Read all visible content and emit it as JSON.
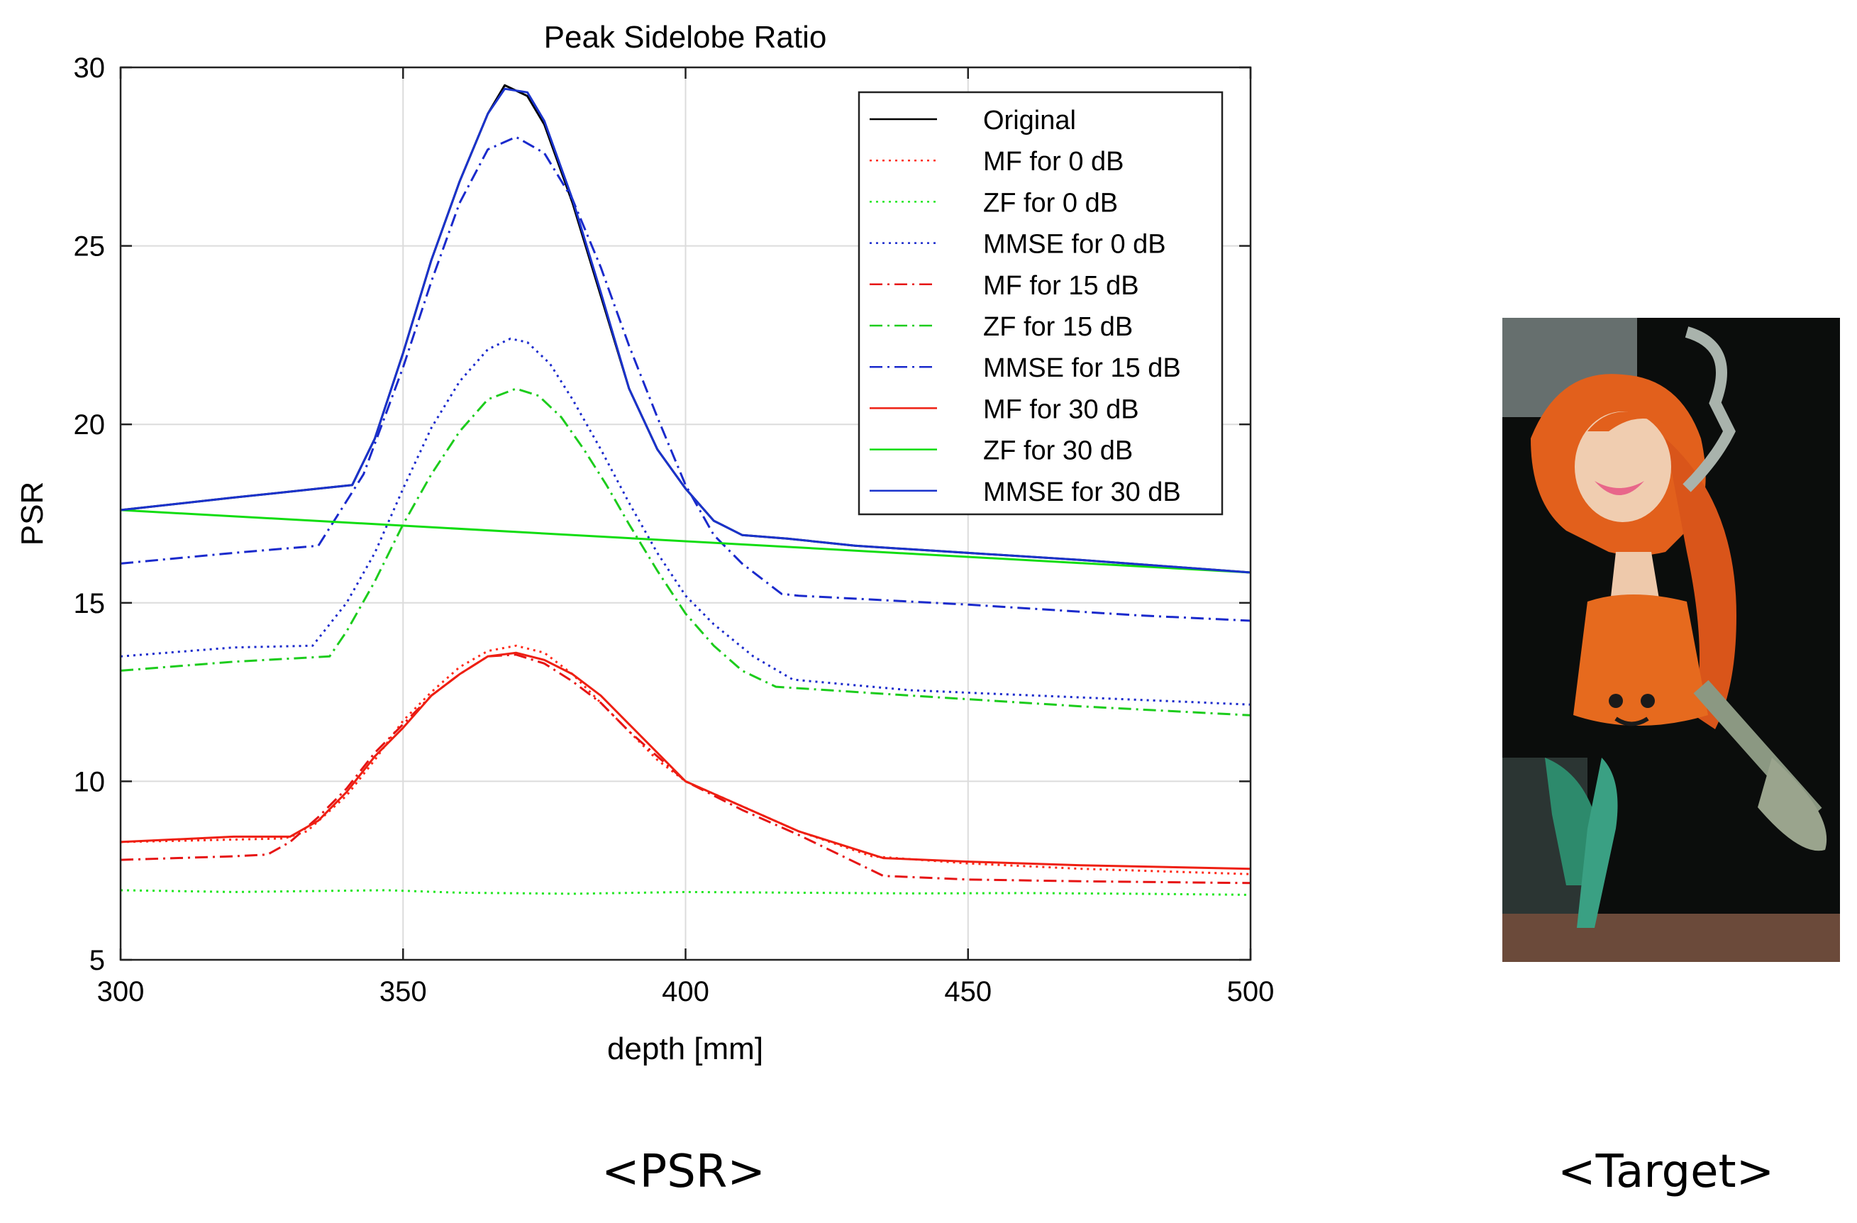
{
  "chart_data": {
    "type": "line",
    "title": "Peak Sidelobe Ratio",
    "xlabel": "depth [mm]",
    "ylabel": "PSR",
    "xlim": [
      300,
      500
    ],
    "ylim": [
      5,
      30
    ],
    "xticks": [
      300,
      350,
      400,
      450,
      500
    ],
    "yticks": [
      5,
      10,
      15,
      20,
      25,
      30
    ],
    "grid": true,
    "legend_position": "top-right",
    "series": [
      {
        "name": "Original",
        "color": "#000000",
        "style": "solid",
        "x": [
          300,
          320,
          335,
          341,
          345,
          350,
          355,
          360,
          365,
          368,
          372,
          375,
          380,
          385,
          390,
          395,
          400,
          405,
          410,
          418,
          430,
          450,
          470,
          500
        ],
        "y": [
          17.6,
          17.95,
          18.2,
          18.3,
          19.6,
          22.0,
          24.6,
          26.8,
          28.7,
          29.5,
          29.2,
          28.4,
          26.2,
          23.6,
          21.0,
          19.3,
          18.2,
          17.3,
          16.9,
          16.8,
          16.6,
          16.4,
          16.2,
          15.85
        ]
      },
      {
        "name": "MF for 0 dB",
        "color": "#ff2a1a",
        "style": "dotted",
        "x": [
          300,
          315,
          329,
          333,
          340,
          345,
          350,
          355,
          360,
          365,
          370,
          375,
          380,
          385,
          390,
          395,
          400,
          410,
          420,
          433,
          450,
          470,
          500
        ],
        "y": [
          8.3,
          8.35,
          8.4,
          8.6,
          9.6,
          10.6,
          11.7,
          12.5,
          13.2,
          13.65,
          13.8,
          13.6,
          13.0,
          12.2,
          11.4,
          10.6,
          10.0,
          9.3,
          8.6,
          7.9,
          7.7,
          7.55,
          7.4
        ]
      },
      {
        "name": "ZF for 0 dB",
        "color": "#22e622",
        "style": "dotted",
        "x": [
          300,
          320,
          347,
          360,
          380,
          400,
          420,
          440,
          460,
          480,
          500
        ],
        "y": [
          6.95,
          6.9,
          6.95,
          6.88,
          6.85,
          6.9,
          6.88,
          6.86,
          6.87,
          6.85,
          6.82
        ]
      },
      {
        "name": "MMSE for 0 dB",
        "color": "#1a2acc",
        "style": "dotted",
        "x": [
          300,
          320,
          334,
          340,
          345,
          350,
          355,
          360,
          365,
          369,
          372,
          376,
          380,
          385,
          390,
          395,
          400,
          405,
          412,
          419,
          440,
          470,
          500
        ],
        "y": [
          13.5,
          13.75,
          13.8,
          15.0,
          16.4,
          18.2,
          19.9,
          21.2,
          22.1,
          22.4,
          22.3,
          21.7,
          20.7,
          19.3,
          17.8,
          16.4,
          15.2,
          14.4,
          13.5,
          12.85,
          12.55,
          12.35,
          12.15
        ]
      },
      {
        "name": "MF for 15 dB",
        "color": "#e61414",
        "style": "dashdot",
        "x": [
          300,
          320,
          326,
          330,
          335,
          340,
          345,
          350,
          355,
          360,
          365,
          370,
          375,
          380,
          385,
          390,
          400,
          410,
          420,
          435,
          450,
          470,
          500
        ],
        "y": [
          7.8,
          7.9,
          7.95,
          8.3,
          9.0,
          9.8,
          10.8,
          11.6,
          12.4,
          13.0,
          13.5,
          13.55,
          13.3,
          12.8,
          12.2,
          11.4,
          10.0,
          9.2,
          8.5,
          7.35,
          7.25,
          7.2,
          7.15
        ]
      },
      {
        "name": "ZF for 15 dB",
        "color": "#1ccc1c",
        "style": "dashdot",
        "x": [
          300,
          320,
          337,
          340,
          345,
          350,
          355,
          360,
          365,
          370,
          374,
          378,
          382,
          386,
          390,
          395,
          400,
          405,
          410,
          416,
          440,
          470,
          500
        ],
        "y": [
          13.1,
          13.35,
          13.5,
          14.2,
          15.6,
          17.2,
          18.6,
          19.8,
          20.7,
          21.0,
          20.8,
          20.2,
          19.3,
          18.3,
          17.2,
          15.9,
          14.7,
          13.8,
          13.1,
          12.65,
          12.4,
          12.1,
          11.85
        ]
      },
      {
        "name": "MMSE for 15 dB",
        "color": "#1a2acc",
        "style": "dashdot",
        "x": [
          300,
          320,
          335,
          339,
          343,
          350,
          355,
          360,
          365,
          370,
          375,
          380,
          385,
          390,
          395,
          400,
          405,
          410,
          417,
          420,
          450,
          480,
          500
        ],
        "y": [
          16.1,
          16.4,
          16.6,
          17.6,
          18.6,
          21.6,
          24.0,
          26.2,
          27.7,
          28.05,
          27.6,
          26.3,
          24.4,
          22.2,
          20.2,
          18.3,
          16.9,
          16.1,
          15.25,
          15.2,
          14.95,
          14.65,
          14.5
        ]
      },
      {
        "name": "MF for 30 dB",
        "color": "#ee1f12",
        "style": "solid",
        "x": [
          300,
          320,
          330,
          335,
          340,
          345,
          350,
          355,
          360,
          365,
          370,
          375,
          380,
          385,
          390,
          395,
          400,
          410,
          420,
          435,
          450,
          470,
          500
        ],
        "y": [
          8.3,
          8.45,
          8.45,
          8.9,
          9.7,
          10.7,
          11.5,
          12.4,
          13.0,
          13.5,
          13.6,
          13.4,
          13.0,
          12.4,
          11.6,
          10.8,
          10.0,
          9.3,
          8.6,
          7.85,
          7.75,
          7.65,
          7.55
        ]
      },
      {
        "name": "ZF for 30 dB",
        "color": "#11dd11",
        "style": "solid",
        "x": [
          300,
          500
        ],
        "y": [
          17.6,
          15.85
        ]
      },
      {
        "name": "MMSE for 30 dB",
        "color": "#1a33cc",
        "style": "solid",
        "x": [
          300,
          320,
          335,
          341,
          345,
          350,
          355,
          360,
          365,
          368,
          372,
          375,
          380,
          385,
          390,
          395,
          400,
          405,
          410,
          418,
          430,
          450,
          470,
          500
        ],
        "y": [
          17.6,
          17.95,
          18.2,
          18.3,
          19.6,
          22.0,
          24.6,
          26.8,
          28.7,
          29.4,
          29.3,
          28.5,
          26.3,
          23.7,
          21.0,
          19.3,
          18.2,
          17.3,
          16.9,
          16.8,
          16.6,
          16.4,
          16.2,
          15.85
        ]
      }
    ]
  },
  "captions": {
    "left": "<PSR>",
    "right": "<Target>"
  }
}
